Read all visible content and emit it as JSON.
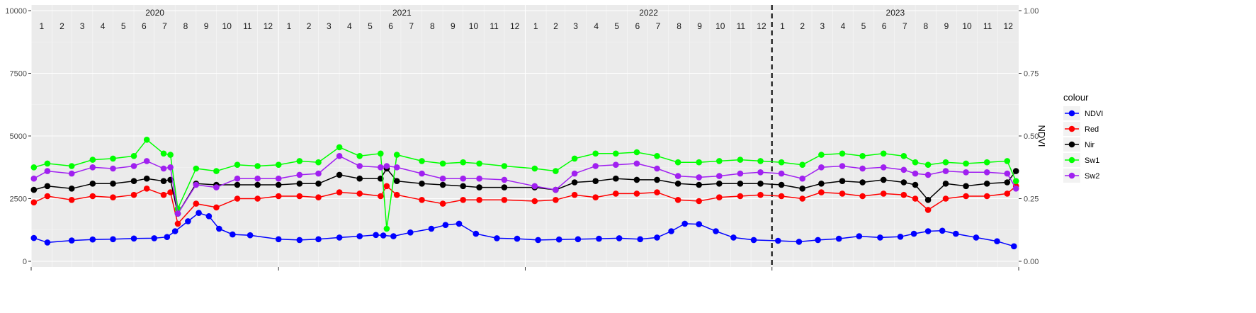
{
  "chart_data": {
    "type": "line",
    "title": "",
    "xlabel": "",
    "ylabel": "",
    "y2label": "NDVI",
    "ylim": [
      0,
      10000
    ],
    "y2lim": [
      0,
      1
    ],
    "yticks": [
      "0",
      "2500",
      "5000",
      "7500",
      "10000"
    ],
    "y2ticks": [
      "0.00",
      "0.25",
      "0.50",
      "0.75",
      "1.00"
    ],
    "years": [
      "2020",
      "2021",
      "2022",
      "2023"
    ],
    "months": [
      "1",
      "2",
      "3",
      "4",
      "5",
      "6",
      "7",
      "8",
      "9",
      "10",
      "11",
      "12"
    ],
    "xlim": [
      "2020-01-01",
      "2024-01-01"
    ],
    "vline_date": "2023-01-01",
    "grid": true,
    "legend": {
      "title": "colour",
      "placement": "right"
    },
    "series": [
      {
        "name": "NDVI",
        "color": "#0000FF",
        "axis": "right",
        "x": [
          "2020-01-05",
          "2020-01-25",
          "2020-03-01",
          "2020-04-01",
          "2020-05-01",
          "2020-06-01",
          "2020-07-01",
          "2020-07-20",
          "2020-08-01",
          "2020-08-20",
          "2020-09-05",
          "2020-09-20",
          "2020-10-05",
          "2020-10-25",
          "2020-11-20",
          "2021-01-01",
          "2021-02-01",
          "2021-03-01",
          "2021-04-01",
          "2021-05-01",
          "2021-05-25",
          "2021-06-05",
          "2021-06-20",
          "2021-07-15",
          "2021-08-15",
          "2021-09-05",
          "2021-09-25",
          "2021-10-20",
          "2021-11-20",
          "2021-12-20",
          "2022-01-20",
          "2022-02-20",
          "2022-03-20",
          "2022-04-20",
          "2022-05-20",
          "2022-06-20",
          "2022-07-15",
          "2022-08-05",
          "2022-08-25",
          "2022-09-15",
          "2022-10-10",
          "2022-11-05",
          "2022-12-05",
          "2023-01-10",
          "2023-02-10",
          "2023-03-10",
          "2023-04-10",
          "2023-05-10",
          "2023-06-10",
          "2023-07-10",
          "2023-07-30",
          "2023-08-20",
          "2023-09-10",
          "2023-09-30",
          "2023-10-30",
          "2023-11-30",
          "2023-12-25"
        ],
        "values": [
          0.093,
          0.075,
          0.083,
          0.087,
          0.088,
          0.091,
          0.092,
          0.097,
          0.12,
          0.16,
          0.193,
          0.18,
          0.13,
          0.107,
          0.104,
          0.088,
          0.085,
          0.088,
          0.095,
          0.1,
          0.105,
          0.103,
          0.1,
          0.115,
          0.13,
          0.145,
          0.15,
          0.11,
          0.092,
          0.09,
          0.085,
          0.087,
          0.088,
          0.09,
          0.092,
          0.088,
          0.095,
          0.12,
          0.15,
          0.148,
          0.12,
          0.095,
          0.085,
          0.082,
          0.078,
          0.085,
          0.09,
          0.1,
          0.095,
          0.098,
          0.11,
          0.12,
          0.122,
          0.11,
          0.095,
          0.08,
          0.06
        ]
      },
      {
        "name": "Red",
        "color": "#FF0000",
        "axis": "left",
        "x": [
          "2020-01-05",
          "2020-01-25",
          "2020-03-01",
          "2020-04-01",
          "2020-05-01",
          "2020-06-01",
          "2020-06-20",
          "2020-07-15",
          "2020-07-25",
          "2020-08-05",
          "2020-09-01",
          "2020-10-01",
          "2020-11-01",
          "2020-12-01",
          "2021-01-01",
          "2021-02-01",
          "2021-03-01",
          "2021-04-01",
          "2021-05-01",
          "2021-06-01",
          "2021-06-10",
          "2021-06-25",
          "2021-08-01",
          "2021-09-01",
          "2021-10-01",
          "2021-10-25",
          "2021-12-01",
          "2022-01-15",
          "2022-02-15",
          "2022-03-15",
          "2022-04-15",
          "2022-05-15",
          "2022-06-15",
          "2022-07-15",
          "2022-08-15",
          "2022-09-15",
          "2022-10-15",
          "2022-11-15",
          "2022-12-15",
          "2023-01-15",
          "2023-02-15",
          "2023-03-15",
          "2023-04-15",
          "2023-05-15",
          "2023-06-15",
          "2023-07-15",
          "2023-08-01",
          "2023-08-20",
          "2023-09-15",
          "2023-10-15",
          "2023-11-15",
          "2023-12-15",
          "2023-12-28"
        ],
        "values": [
          2350,
          2600,
          2450,
          2600,
          2550,
          2650,
          2900,
          2650,
          2750,
          1500,
          2300,
          2150,
          2500,
          2500,
          2600,
          2600,
          2550,
          2750,
          2700,
          2600,
          3000,
          2650,
          2450,
          2300,
          2450,
          2450,
          2450,
          2400,
          2450,
          2650,
          2550,
          2700,
          2700,
          2750,
          2450,
          2400,
          2550,
          2600,
          2650,
          2600,
          2500,
          2750,
          2700,
          2600,
          2700,
          2650,
          2500,
          2050,
          2500,
          2600,
          2600,
          2700,
          3000
        ]
      },
      {
        "name": "Nir",
        "color": "#000000",
        "axis": "left",
        "x": [
          "2020-01-05",
          "2020-01-25",
          "2020-03-01",
          "2020-04-01",
          "2020-05-01",
          "2020-06-01",
          "2020-06-20",
          "2020-07-15",
          "2020-07-25",
          "2020-08-05",
          "2020-09-01",
          "2020-10-01",
          "2020-11-01",
          "2020-12-01",
          "2021-01-01",
          "2021-02-01",
          "2021-03-01",
          "2021-04-01",
          "2021-05-01",
          "2021-06-01",
          "2021-06-10",
          "2021-06-25",
          "2021-08-01",
          "2021-09-01",
          "2021-10-01",
          "2021-10-25",
          "2021-12-01",
          "2022-01-15",
          "2022-02-15",
          "2022-03-15",
          "2022-04-15",
          "2022-05-15",
          "2022-06-15",
          "2022-07-15",
          "2022-08-15",
          "2022-09-15",
          "2022-10-15",
          "2022-11-15",
          "2022-12-15",
          "2023-01-15",
          "2023-02-15",
          "2023-03-15",
          "2023-04-15",
          "2023-05-15",
          "2023-06-15",
          "2023-07-15",
          "2023-08-01",
          "2023-08-20",
          "2023-09-15",
          "2023-10-15",
          "2023-11-15",
          "2023-12-15",
          "2023-12-28"
        ],
        "values": [
          2850,
          3000,
          2900,
          3100,
          3100,
          3200,
          3300,
          3200,
          3250,
          1900,
          3100,
          3050,
          3050,
          3050,
          3050,
          3100,
          3100,
          3450,
          3300,
          3300,
          3700,
          3200,
          3100,
          3050,
          3000,
          2950,
          2950,
          2950,
          2850,
          3150,
          3200,
          3300,
          3250,
          3250,
          3100,
          3050,
          3100,
          3100,
          3100,
          3050,
          2900,
          3100,
          3200,
          3150,
          3250,
          3150,
          3050,
          2450,
          3100,
          3000,
          3100,
          3150,
          3600
        ]
      },
      {
        "name": "Sw1",
        "color": "#00FF00",
        "axis": "left",
        "x": [
          "2020-01-05",
          "2020-01-25",
          "2020-03-01",
          "2020-04-01",
          "2020-05-01",
          "2020-06-01",
          "2020-06-20",
          "2020-07-15",
          "2020-07-25",
          "2020-08-05",
          "2020-09-01",
          "2020-10-01",
          "2020-11-01",
          "2020-12-01",
          "2021-01-01",
          "2021-02-01",
          "2021-03-01",
          "2021-04-01",
          "2021-05-01",
          "2021-06-01",
          "2021-06-10",
          "2021-06-25",
          "2021-08-01",
          "2021-09-01",
          "2021-10-01",
          "2021-10-25",
          "2021-12-01",
          "2022-01-15",
          "2022-02-15",
          "2022-03-15",
          "2022-04-15",
          "2022-05-15",
          "2022-06-15",
          "2022-07-15",
          "2022-08-15",
          "2022-09-15",
          "2022-10-15",
          "2022-11-15",
          "2022-12-15",
          "2023-01-15",
          "2023-02-15",
          "2023-03-15",
          "2023-04-15",
          "2023-05-15",
          "2023-06-15",
          "2023-07-15",
          "2023-08-01",
          "2023-08-20",
          "2023-09-15",
          "2023-10-15",
          "2023-11-15",
          "2023-12-15",
          "2023-12-28"
        ],
        "values": [
          3750,
          3900,
          3800,
          4050,
          4100,
          4200,
          4850,
          4300,
          4250,
          2100,
          3700,
          3600,
          3850,
          3800,
          3850,
          4000,
          3950,
          4550,
          4200,
          4300,
          1300,
          4250,
          4000,
          3900,
          3950,
          3900,
          3800,
          3700,
          3600,
          4100,
          4300,
          4300,
          4350,
          4200,
          3950,
          3950,
          4000,
          4050,
          4000,
          3950,
          3850,
          4250,
          4300,
          4200,
          4300,
          4200,
          3950,
          3850,
          3950,
          3900,
          3950,
          4000,
          3200
        ]
      },
      {
        "name": "Sw2",
        "color": "#A020F0",
        "axis": "left",
        "x": [
          "2020-01-05",
          "2020-01-25",
          "2020-03-01",
          "2020-04-01",
          "2020-05-01",
          "2020-06-01",
          "2020-06-20",
          "2020-07-15",
          "2020-07-25",
          "2020-08-05",
          "2020-09-01",
          "2020-10-01",
          "2020-11-01",
          "2020-12-01",
          "2021-01-01",
          "2021-02-01",
          "2021-03-01",
          "2021-04-01",
          "2021-05-01",
          "2021-06-01",
          "2021-06-10",
          "2021-06-25",
          "2021-08-01",
          "2021-09-01",
          "2021-10-01",
          "2021-10-25",
          "2021-12-01",
          "2022-01-15",
          "2022-02-15",
          "2022-03-15",
          "2022-04-15",
          "2022-05-15",
          "2022-06-15",
          "2022-07-15",
          "2022-08-15",
          "2022-09-15",
          "2022-10-15",
          "2022-11-15",
          "2022-12-15",
          "2023-01-15",
          "2023-02-15",
          "2023-03-15",
          "2023-04-15",
          "2023-05-15",
          "2023-06-15",
          "2023-07-15",
          "2023-08-01",
          "2023-08-20",
          "2023-09-15",
          "2023-10-15",
          "2023-11-15",
          "2023-12-15",
          "2023-12-28"
        ],
        "values": [
          3300,
          3600,
          3500,
          3750,
          3700,
          3800,
          4000,
          3700,
          3750,
          1900,
          3050,
          2950,
          3300,
          3300,
          3300,
          3450,
          3500,
          4200,
          3800,
          3750,
          3800,
          3750,
          3500,
          3300,
          3300,
          3300,
          3250,
          3000,
          2850,
          3500,
          3800,
          3850,
          3900,
          3700,
          3400,
          3350,
          3400,
          3500,
          3550,
          3500,
          3300,
          3750,
          3800,
          3700,
          3750,
          3650,
          3500,
          3450,
          3600,
          3550,
          3550,
          3500,
          2900
        ]
      }
    ]
  }
}
